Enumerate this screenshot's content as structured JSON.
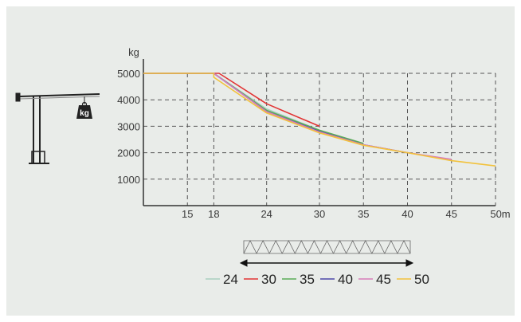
{
  "chart_data": {
    "type": "line",
    "ylabel": "kg",
    "x_unit": "m",
    "xlim": [
      10,
      50
    ],
    "ylim": [
      0,
      5000
    ],
    "x_ticks": [
      15,
      18,
      24,
      30,
      35,
      40,
      45,
      50
    ],
    "x_tick_labels": [
      "15",
      "18",
      "24",
      "30",
      "35",
      "40",
      "45",
      "50m"
    ],
    "y_ticks": [
      1000,
      2000,
      3000,
      4000,
      5000
    ],
    "y_tick_labels": [
      "1000",
      "2000",
      "3000",
      "4000",
      "5000"
    ],
    "grid": true,
    "legend_position": "bottom",
    "series": [
      {
        "name": "24",
        "color": "#a9cfc0",
        "points": [
          [
            10,
            5000
          ],
          [
            18,
            5000
          ],
          [
            24,
            3650
          ],
          [
            30,
            2850
          ],
          [
            35,
            2300
          ]
        ]
      },
      {
        "name": "30",
        "color": "#e23434",
        "points": [
          [
            10,
            5000
          ],
          [
            18.6,
            5000
          ],
          [
            24,
            3850
          ],
          [
            30,
            3000
          ]
        ]
      },
      {
        "name": "35",
        "color": "#5aab58",
        "points": [
          [
            10,
            5000
          ],
          [
            18,
            5000
          ],
          [
            24,
            3600
          ],
          [
            30,
            2850
          ],
          [
            35,
            2350
          ]
        ]
      },
      {
        "name": "40",
        "color": "#4c46a8",
        "points": [
          [
            10,
            5000
          ],
          [
            18,
            5000
          ],
          [
            24,
            3550
          ],
          [
            30,
            2800
          ],
          [
            35,
            2300
          ],
          [
            40,
            2000
          ]
        ]
      },
      {
        "name": "45",
        "color": "#d77cb9",
        "points": [
          [
            10,
            5000
          ],
          [
            18,
            5000
          ],
          [
            24,
            3550
          ],
          [
            30,
            2780
          ],
          [
            35,
            2300
          ],
          [
            40,
            2000
          ],
          [
            45,
            1750
          ]
        ]
      },
      {
        "name": "50",
        "color": "#f2c23c",
        "points": [
          [
            10,
            5000
          ],
          [
            18,
            5000
          ],
          [
            18,
            4850
          ],
          [
            24,
            3500
          ],
          [
            30,
            2750
          ],
          [
            35,
            2280
          ],
          [
            40,
            2000
          ],
          [
            45,
            1700
          ],
          [
            50,
            1500
          ]
        ]
      }
    ]
  },
  "icons": {
    "crane": "tower-crane-icon",
    "weight": "weight-kg-icon",
    "jib": "jib-truss-icon"
  },
  "weight_label": "kg"
}
